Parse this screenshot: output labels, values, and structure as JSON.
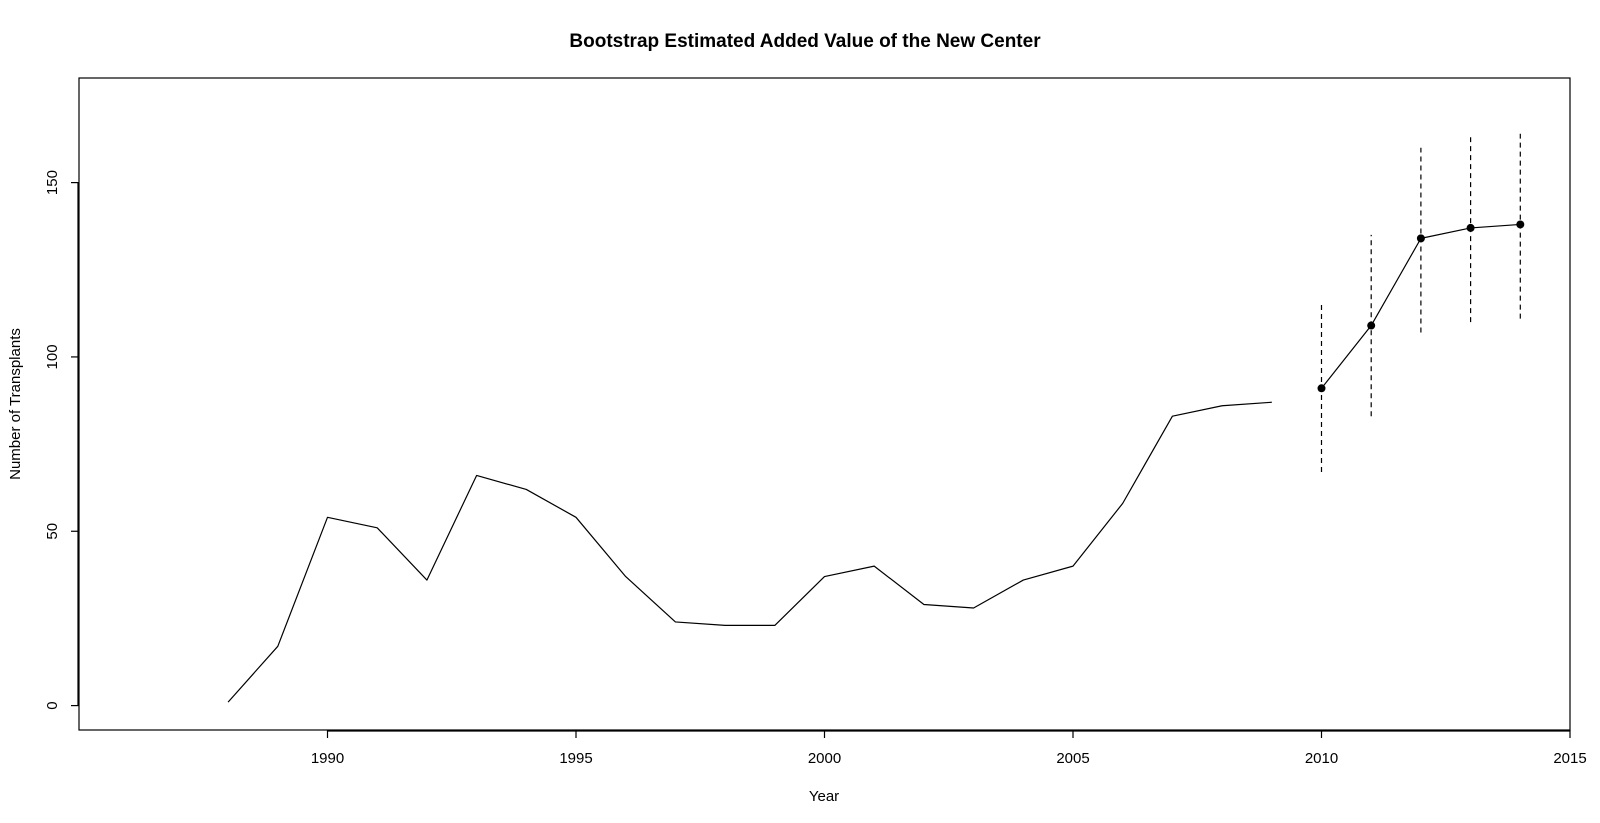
{
  "chart_data": {
    "type": "line",
    "title": "Bootstrap Estimated Added Value of the New Center",
    "xlabel": "Year",
    "ylabel": "Number of Transplants",
    "xlim": [
      1985,
      2015
    ],
    "ylim": [
      -7,
      180
    ],
    "x_ticks": [
      1990,
      1995,
      2000,
      2005,
      2010,
      2015
    ],
    "y_ticks": [
      0,
      50,
      100,
      150
    ],
    "grid": false,
    "series": [
      {
        "style": "solid",
        "x": [
          1988,
          1989,
          1990,
          1991,
          1992,
          1993,
          1994,
          1995,
          1996,
          1997,
          1998,
          1999,
          2000,
          2001,
          2002,
          2003,
          2004,
          2005,
          2006,
          2007,
          2008,
          2009
        ],
        "y": [
          1,
          17,
          54,
          51,
          36,
          66,
          62,
          54,
          37,
          24,
          23,
          23,
          37,
          40,
          29,
          28,
          36,
          40,
          58,
          83,
          86,
          87
        ]
      },
      {
        "style": "solid-with-points",
        "x": [
          2010,
          2011,
          2012,
          2013,
          2014
        ],
        "y": [
          91,
          109,
          134,
          137,
          138
        ],
        "ci_lower": [
          67,
          83,
          107,
          110,
          111
        ],
        "ci_upper": [
          115,
          135,
          160,
          163,
          164
        ]
      }
    ]
  }
}
